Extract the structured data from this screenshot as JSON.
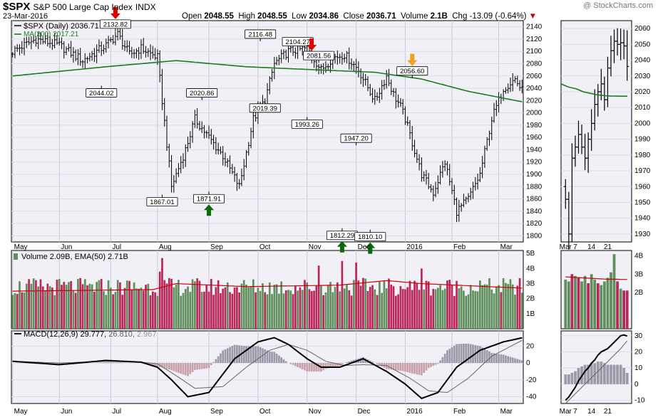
{
  "header": {
    "symbol": "$SPX",
    "name": "S&P 500 Large Cap Index",
    "exchange": "INDX",
    "watermark": "@ StockCharts.com",
    "date": "23-Mar-2016",
    "open_label": "Open",
    "open": "2048.55",
    "high_label": "High",
    "high": "2048.55",
    "low_label": "Low",
    "low": "2034.86",
    "close_label": "Close",
    "close": "2036.71",
    "volume_label": "Volume",
    "volume": "2.1B",
    "chg_label": "Chg",
    "chg": "-13.09 (-0.64%)"
  },
  "colors": {
    "up": "#000000",
    "ma": "#1e7b1e",
    "vol_up": "#5e8f5c",
    "vol_down": "#b8265a",
    "ema": "#cc0000",
    "macd": "#000000",
    "signal": "#666666",
    "hist": "#9a9aa8",
    "hist_neg": "#c9a0aa",
    "panel_bg": "#f0f0f6",
    "arrow_red": "#dd0000",
    "arrow_green": "#0a6a0a",
    "arrow_orange": "#f0a020"
  },
  "chart_data": [
    {
      "type": "ohlc",
      "panel": "price",
      "legend": [
        "$SPX (Daily) 2036.71",
        "MA(200) 2017.21"
      ],
      "ylim": [
        1790,
        2150
      ],
      "y_ticks": [
        1800,
        1820,
        1840,
        1860,
        1880,
        1900,
        1920,
        1940,
        1960,
        1980,
        2000,
        2020,
        2040,
        2060,
        2080,
        2100,
        2120,
        2140
      ],
      "x_months": [
        "May",
        "Jun",
        "Jul",
        "Aug",
        "Sep",
        "Oct",
        "Nov",
        "Dec",
        "2016",
        "Feb",
        "Mar"
      ],
      "x_months_idx": [
        0,
        20,
        42,
        62,
        84,
        105,
        126,
        147,
        168,
        188,
        208
      ],
      "close_path_idx": [
        0,
        10,
        20,
        30,
        40,
        45,
        50,
        55,
        62,
        68,
        74,
        78,
        84,
        90,
        97,
        103,
        108,
        112,
        118,
        126,
        132,
        137,
        142,
        148,
        155,
        160,
        163,
        166,
        168,
        175,
        180,
        185,
        190,
        195,
        200,
        205,
        210,
        215,
        218
      ],
      "close_path_val": [
        2100,
        2120,
        2110,
        2085,
        2110,
        2128,
        2095,
        2105,
        2090,
        1880,
        1940,
        1990,
        1960,
        1930,
        1880,
        1990,
        2020,
        2080,
        2100,
        2105,
        2070,
        2090,
        2095,
        2070,
        2020,
        2060,
        2030,
        2010,
        1990,
        1900,
        1870,
        1920,
        1840,
        1860,
        1900,
        1990,
        2040,
        2055,
        2036
      ],
      "ma200_idx": [
        0,
        40,
        70,
        100,
        130,
        155,
        175,
        195,
        218
      ],
      "ma200_val": [
        2060,
        2075,
        2085,
        2075,
        2070,
        2066,
        2055,
        2035,
        2018
      ],
      "annotations": [
        {
          "idx": 44,
          "label": "2132.82",
          "y": 2132.82,
          "pos": "above",
          "arrow": "red-down"
        },
        {
          "idx": 38,
          "label": "2044.02",
          "y": 2044.02,
          "pos": "below"
        },
        {
          "idx": 64,
          "label": "1867.01",
          "y": 1867.01,
          "pos": "below"
        },
        {
          "idx": 81,
          "label": "2020.86",
          "y": 2020.86,
          "pos": "above"
        },
        {
          "idx": 84,
          "label": "1871.91",
          "y": 1871.91,
          "pos": "below",
          "arrow": "green-up"
        },
        {
          "idx": 106,
          "label": "2116.48",
          "y": 2116.48,
          "pos": "above"
        },
        {
          "idx": 108,
          "label": "2019.39",
          "y": 2019.39,
          "pos": "below"
        },
        {
          "idx": 122,
          "label": "2104.27",
          "y": 2104.27,
          "pos": "above"
        },
        {
          "idx": 126,
          "label": "1993.26",
          "y": 1993.26,
          "pos": "below"
        },
        {
          "idx": 131,
          "label": "2081.56",
          "y": 2081.56,
          "pos": "above",
          "arrow": "red-down-left"
        },
        {
          "idx": 141,
          "label": "1812.29",
          "y": 1812.29,
          "pos": "below",
          "arrow": "green-up"
        },
        {
          "idx": 147,
          "label": "1947.20",
          "y": 1947.2,
          "pos": "above"
        },
        {
          "idx": 153,
          "label": "1810.10",
          "y": 1810.1,
          "pos": "below",
          "arrow": "green-up"
        },
        {
          "idx": 171,
          "label": "2056.60",
          "y": 2056.6,
          "pos": "above",
          "arrow": "orange-down"
        }
      ]
    },
    {
      "type": "bar",
      "panel": "volume",
      "legend": "Volume 2.09B, EMA(50) 2.71B",
      "ylim": [
        0,
        5.2
      ],
      "y_ticks": [
        "1B",
        "2B",
        "3B",
        "4B",
        "5B"
      ],
      "y_tick_values": [
        1,
        2,
        3,
        4,
        5
      ],
      "base_volume": 2.6,
      "spikes": [
        {
          "idx": 64,
          "value": 4.7
        },
        {
          "idx": 63,
          "value": 3.8
        },
        {
          "idx": 131,
          "value": 4.2
        },
        {
          "idx": 141,
          "value": 4.5
        },
        {
          "idx": 147,
          "value": 4.4
        },
        {
          "idx": 175,
          "value": 4.0
        }
      ],
      "ema_idx": [
        0,
        60,
        70,
        100,
        140,
        160,
        175,
        218
      ],
      "ema_val": [
        2.5,
        2.6,
        3.0,
        2.8,
        2.9,
        3.2,
        3.0,
        2.7
      ]
    },
    {
      "type": "line+bar",
      "panel": "macd",
      "legend": [
        "MACD(12,26,9) 29.777,",
        "26.810,",
        "2.967"
      ],
      "ylim": [
        -48,
        38
      ],
      "y_ticks": [
        -40,
        -20,
        0,
        20
      ],
      "macd_idx": [
        0,
        20,
        40,
        55,
        62,
        68,
        75,
        84,
        95,
        105,
        112,
        118,
        126,
        132,
        140,
        150,
        160,
        168,
        175,
        182,
        190,
        200,
        210,
        218
      ],
      "macd_val": [
        2,
        -2,
        3,
        1,
        -5,
        -20,
        -40,
        -35,
        5,
        25,
        30,
        22,
        5,
        -5,
        -5,
        5,
        -10,
        -25,
        -42,
        -35,
        -5,
        15,
        25,
        29.8
      ],
      "signal_idx": [
        0,
        20,
        40,
        55,
        62,
        70,
        78,
        90,
        100,
        110,
        118,
        126,
        134,
        142,
        150,
        160,
        170,
        178,
        186,
        195,
        205,
        218
      ],
      "signal_val": [
        2,
        0,
        2,
        1,
        -1,
        -15,
        -30,
        -28,
        -5,
        15,
        22,
        15,
        2,
        -3,
        -2,
        -3,
        -18,
        -33,
        -35,
        -18,
        8,
        26.8
      ]
    },
    {
      "type": "ohlc",
      "panel": "zoom-price",
      "y_ticks": [
        1930,
        1940,
        1950,
        1960,
        1970,
        1980,
        1990,
        2000,
        2010,
        2020,
        2030,
        2040,
        2050,
        2060
      ],
      "ylim": [
        1925,
        2065
      ],
      "x_labels": [
        "Mar",
        "7",
        "14",
        "21"
      ],
      "x_labels_idx": [
        0,
        3,
        8,
        13
      ],
      "closes": [
        1952,
        1930,
        1978,
        1985,
        1993,
        1985,
        1978,
        1990,
        2000,
        2012,
        2020,
        2025,
        2015,
        2035,
        2046,
        2052,
        2050,
        2051,
        2049,
        2036
      ],
      "ma200_val": [
        2025,
        2023,
        2022,
        2020,
        2019,
        2018,
        2017.5,
        2017.3,
        2017.2,
        2017.2
      ]
    },
    {
      "type": "bar",
      "panel": "zoom-volume",
      "y_ticks": [
        "2B",
        "3B",
        "4B"
      ],
      "y_tick_values": [
        2,
        3,
        4
      ],
      "ylim": [
        0,
        4.3
      ],
      "values": [
        2.7,
        2.6,
        3.0,
        2.9,
        2.8,
        2.6,
        2.9,
        2.5,
        3.0,
        2.7,
        2.5,
        2.4,
        2.6,
        2.8,
        3.1,
        4.1,
        2.6,
        2.2,
        2.1,
        2.1
      ],
      "up": [
        1,
        1,
        0,
        1,
        0,
        1,
        1,
        0,
        1,
        1,
        0,
        1,
        1,
        1,
        1,
        1,
        0,
        1,
        0,
        0
      ],
      "ema_val": [
        2.85,
        2.84,
        2.83,
        2.82,
        2.81,
        2.8,
        2.79,
        2.78,
        2.77,
        2.76,
        2.75,
        2.74,
        2.73,
        2.72,
        2.72,
        2.72,
        2.72,
        2.71,
        2.71,
        2.71
      ]
    },
    {
      "type": "line+bar",
      "panel": "zoom-macd",
      "y_ticks": [
        -10,
        0,
        10,
        20,
        30
      ],
      "ylim": [
        -12,
        33
      ],
      "macd_val": [
        -10,
        -8,
        -5,
        -2,
        2,
        5,
        8,
        10,
        13,
        15,
        18,
        20,
        21,
        22,
        24,
        26,
        28,
        30,
        30.5,
        29.8
      ],
      "signal_val": [
        -12,
        -10,
        -8,
        -6,
        -4,
        -2,
        0,
        2,
        4,
        6,
        8,
        10,
        12,
        14,
        16,
        18,
        20,
        22,
        24.5,
        26.8
      ]
    }
  ]
}
